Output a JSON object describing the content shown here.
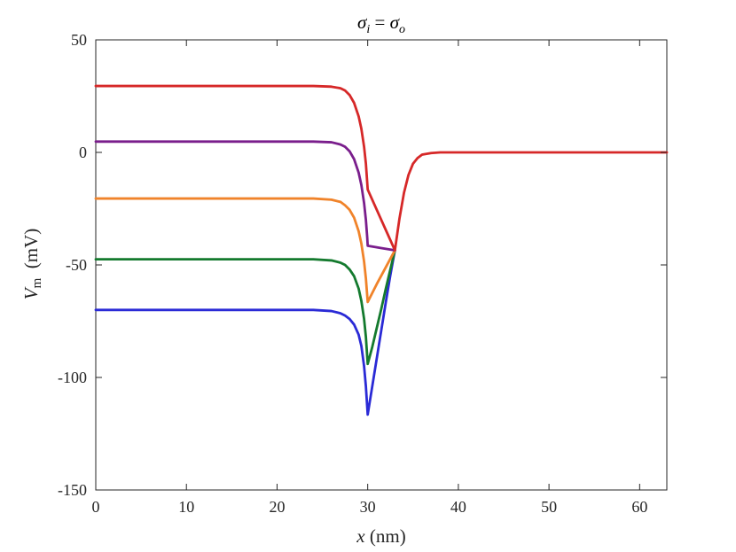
{
  "chart_data": {
    "type": "line",
    "title": "σᵢ = σₒ",
    "title_parts": {
      "sym1": "σ",
      "sub1": "i",
      "eq": " = ",
      "sym2": "σ",
      "sub2": "o"
    },
    "xlabel": "x (nm)",
    "xlabel_parts": {
      "var": "x",
      "unit": " (nm)"
    },
    "ylabel": "Vm (mV)",
    "ylabel_parts": {
      "var": "V",
      "sub": "m",
      "unit": "  (mV)"
    },
    "xlim": [
      0,
      63
    ],
    "ylim": [
      -150,
      50
    ],
    "xticks": [
      0,
      10,
      20,
      30,
      40,
      50,
      60
    ],
    "xtick_labels": [
      "0",
      "10",
      "20",
      "30",
      "40",
      "50",
      "60"
    ],
    "yticks": [
      50,
      0,
      -50,
      -100,
      -150
    ],
    "ytick_labels": [
      "50",
      "0",
      "-50",
      "-100",
      "-150"
    ],
    "grid": false,
    "legend": "none",
    "series": [
      {
        "color": "#2a2ad6",
        "x": [
          0,
          24,
          26,
          27,
          27.5,
          28,
          28.5,
          29,
          29.3,
          29.6,
          29.8,
          30,
          30.5,
          31,
          31.5,
          32,
          32.5,
          33
        ],
        "y": [
          -70,
          -70,
          -70.5,
          -71.5,
          -72.5,
          -74,
          -76.5,
          -81,
          -86,
          -95,
          -104,
          -116.5,
          -104,
          -91.5,
          -79,
          -66.5,
          -54.5,
          -43.5
        ]
      },
      {
        "color": "#147a2e",
        "x": [
          0,
          24,
          26,
          27,
          27.5,
          28,
          28.5,
          29,
          29.3,
          29.6,
          29.8,
          30,
          30.5,
          31,
          31.5,
          32,
          32.5,
          33
        ],
        "y": [
          -47.5,
          -47.5,
          -48,
          -49,
          -50,
          -52,
          -55,
          -60.5,
          -66,
          -74,
          -82,
          -94,
          -86.5,
          -78,
          -69.5,
          -60.5,
          -52,
          -43.5
        ]
      },
      {
        "color": "#f0832a",
        "x": [
          0,
          24,
          26,
          27,
          27.5,
          28,
          28.5,
          29,
          29.3,
          29.6,
          29.8,
          30,
          31,
          32,
          33
        ],
        "y": [
          -20.5,
          -20.5,
          -21,
          -22,
          -23.5,
          -25.5,
          -29,
          -35,
          -40.5,
          -48.5,
          -56,
          -66.5,
          -58.5,
          -51,
          -43.5
        ]
      },
      {
        "color": "#7a1e8c",
        "x": [
          0,
          24,
          26,
          27,
          27.5,
          28,
          28.5,
          29,
          29.3,
          29.6,
          29.8,
          29.95,
          30,
          31.5,
          33
        ],
        "y": [
          4.8,
          4.8,
          4.5,
          3.5,
          2.5,
          0.5,
          -3,
          -9,
          -14.5,
          -22.5,
          -30,
          -38,
          -41.5,
          -42.5,
          -43.5
        ]
      },
      {
        "color": "#d62828",
        "x": [
          0,
          24,
          26,
          27,
          27.5,
          28,
          28.5,
          29,
          29.3,
          29.6,
          29.8,
          30,
          31,
          32,
          33,
          33.5,
          34,
          34.5,
          35,
          35.5,
          36,
          37,
          38,
          40,
          45,
          63
        ],
        "y": [
          29.5,
          29.5,
          29.2,
          28.5,
          27.5,
          25.5,
          22,
          16,
          10.5,
          2.5,
          -5,
          -16.5,
          -25.5,
          -34.5,
          -43.5,
          -29.5,
          -18,
          -10,
          -5,
          -2.5,
          -1,
          -0.3,
          0,
          0,
          0,
          0
        ]
      }
    ]
  }
}
